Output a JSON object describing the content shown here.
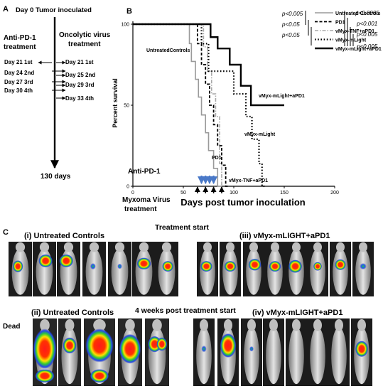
{
  "panels": {
    "a_label": "A",
    "b_label": "B",
    "c_label": "C"
  },
  "timeline": {
    "day0": "Day 0 Tumor inoculated",
    "anti_header_1": "Anti-PD-1",
    "anti_header_2": "treatment",
    "onco_header_1": "Oncolytic virus",
    "onco_header_2": "treatment",
    "left_days": [
      "Day 21 1st",
      "Day 24 2nd",
      "Day 27 3rd",
      "Day 30 4th"
    ],
    "right_days": [
      "Day 21 1st",
      "Day 25 2nd",
      "Day 29 3rd",
      "Day 33 4th"
    ],
    "end": "130 days"
  },
  "chart_data": {
    "type": "line",
    "subtype": "kaplan-meier step",
    "xlabel": "Days post tumor inoculation",
    "ylabel": "Percent survival",
    "xlim": [
      0,
      200
    ],
    "ylim": [
      0,
      100
    ],
    "x_ticks": [
      "0",
      "50",
      "100",
      "150",
      "200"
    ],
    "y_ticks": [
      "0",
      "50",
      "100"
    ],
    "grid": false,
    "legend_position": "top-right",
    "series": [
      {
        "name": "Untreated Controls",
        "style": "solid-gray",
        "color": "#999999",
        "x": [
          0,
          50,
          56,
          58,
          62,
          65,
          68,
          72,
          75,
          78,
          80,
          82,
          84,
          88
        ],
        "y": [
          100,
          100,
          88,
          77,
          66,
          55,
          44,
          33,
          22,
          22,
          11,
          11,
          0,
          0
        ]
      },
      {
        "name": "PD1",
        "style": "dashed-black",
        "color": "#000000",
        "x": [
          0,
          60,
          64,
          68,
          72,
          76,
          80,
          84,
          88,
          92,
          94
        ],
        "y": [
          100,
          100,
          88,
          75,
          63,
          50,
          38,
          25,
          13,
          0,
          0
        ]
      },
      {
        "name": "vMyx-TNF+aPD1",
        "style": "dashdot-gray",
        "color": "#aaaaaa",
        "x": [
          0,
          66,
          70,
          74,
          78,
          82,
          86,
          88
        ],
        "y": [
          100,
          100,
          86,
          71,
          57,
          43,
          14,
          0
        ]
      },
      {
        "name": "vMyx-mLight",
        "style": "dotted-black",
        "color": "#000000",
        "x": [
          0,
          63,
          68,
          75,
          95,
          100,
          112,
          118,
          125,
          128,
          132
        ],
        "y": [
          100,
          100,
          88,
          71,
          71,
          57,
          43,
          29,
          14,
          0,
          0
        ]
      },
      {
        "name": "vMyx-mLight+aPD1",
        "style": "solid-black-thick",
        "color": "#000000",
        "x": [
          0,
          70,
          77,
          84,
          96,
          107,
          117,
          150
        ],
        "y": [
          100,
          100,
          92,
          85,
          75,
          62,
          50,
          50
        ]
      }
    ],
    "curve_labels": [
      {
        "text": "UntreatedControls"
      },
      {
        "text": "vMyx-mLight+aPD1"
      },
      {
        "text": "vMyx-mLight"
      },
      {
        "text": "PD1"
      },
      {
        "text": "vMyx-TNF+aPD1"
      }
    ],
    "significance_left": [
      "p<0.005",
      "p<0.05",
      "p<0.05"
    ],
    "significance_right": [
      "p<0.0005",
      "p<0.001",
      "p<0.005",
      "p<0.005"
    ],
    "treatment_labels": {
      "anti_pd1": "Anti-PD-1",
      "myxoma_1": "Myxoma Virus",
      "myxoma_2": "treatment"
    },
    "blue_arrow_days": [
      68,
      72,
      76,
      80
    ],
    "black_arrow_days": [
      64,
      72,
      80,
      88
    ]
  },
  "imaging": {
    "treatment_start": "Treatment start",
    "four_weeks": "4 weeks post treatment start",
    "dead": "Dead",
    "panel_i": "(i) Untreated Controls",
    "panel_ii": "(ii) Untreated Controls",
    "panel_iii": "(iii) vMyx-mLIGHT+aPD1",
    "panel_iv": "(iv) vMyx-mLIGHT+aPD1"
  }
}
